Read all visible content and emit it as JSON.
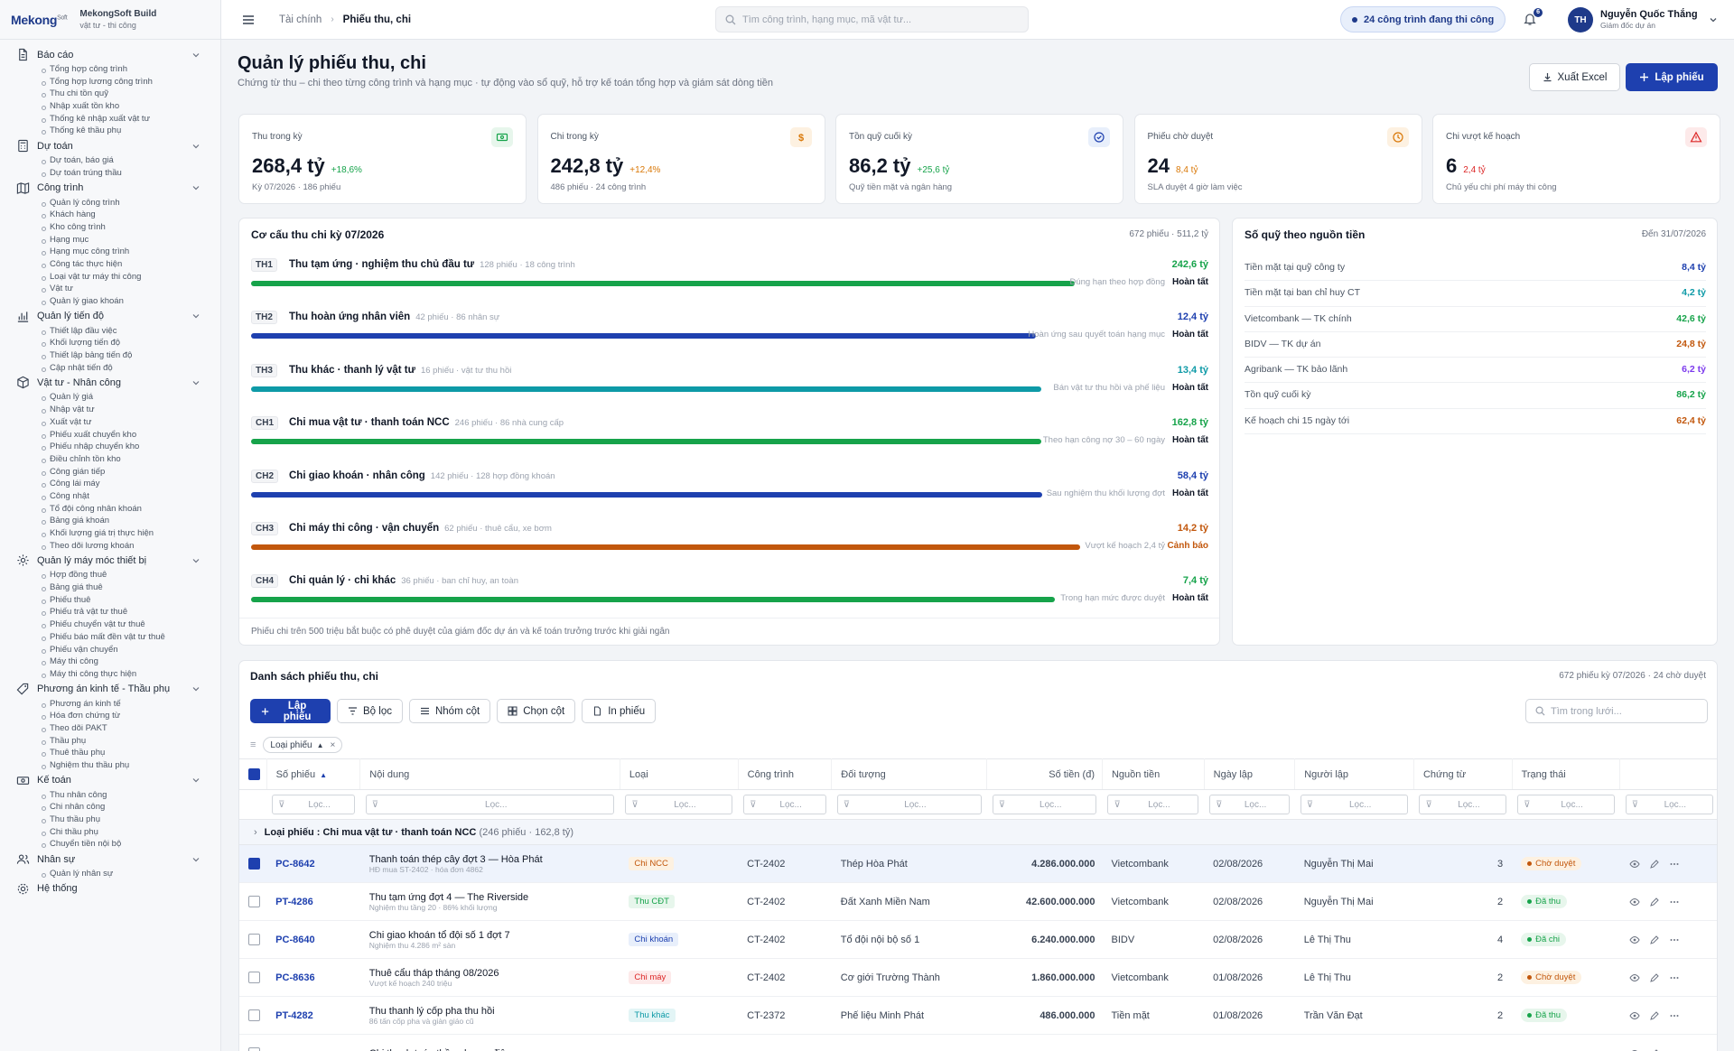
{
  "brand": {
    "logo_main": "Mekong",
    "logo_sup": "Soft",
    "name": "MekongSoft Build",
    "tagline": "vật tư - thi công"
  },
  "sidebar": [
    {
      "label": "Báo cáo",
      "icon": "document-icon",
      "items": [
        "Tổng hợp công trình",
        "Tổng hợp lương công trình",
        "Thu chi tồn quỹ",
        "Nhập xuất tồn kho",
        "Thống kê nhập xuất vật tư",
        "Thống kê thầu phụ"
      ]
    },
    {
      "label": "Dự toán",
      "icon": "calculator-icon",
      "items": [
        "Dự toán, báo giá",
        "Dự toán trúng thầu"
      ]
    },
    {
      "label": "Công trình",
      "icon": "map-icon",
      "items": [
        "Quản lý công trình",
        "Khách hàng",
        "Kho công trình",
        "Hạng mục",
        "Hạng mục công trình",
        "Công tác thực hiện",
        "Loại vật tư máy thi công",
        "Vật tư",
        "Quản lý giao khoán"
      ]
    },
    {
      "label": "Quản lý tiến độ",
      "icon": "bar-chart-icon",
      "items": [
        "Thiết lập đầu việc",
        "Khối lượng tiến độ",
        "Thiết lập bảng tiến độ",
        "Cập nhật tiến độ"
      ]
    },
    {
      "label": "Vật tư - Nhân công",
      "icon": "box-icon",
      "items": [
        "Quản lý giá",
        "Nhập vật tư",
        "Xuất vật tư",
        "Phiếu xuất chuyển kho",
        "Phiếu nhập chuyển kho",
        "Điều chỉnh tồn kho",
        "Công gián tiếp",
        "Công lái máy",
        "Công nhật",
        "Tổ đội công nhân khoán",
        "Bảng giá khoán",
        "Khối lượng giá trị thực hiện",
        "Theo dõi lương khoán"
      ]
    },
    {
      "label": "Quản lý máy móc thiết bị",
      "icon": "gear-icon",
      "items": [
        "Hợp đồng thuê",
        "Bảng giá thuê",
        "Phiếu thuê",
        "Phiếu trả vật tư thuê",
        "Phiếu chuyển vật tư thuê",
        "Phiếu báo mất đền vật tư thuê",
        "Phiếu vận chuyển",
        "Máy thi công",
        "Máy thi công thực hiện"
      ]
    },
    {
      "label": "Phương án kinh tế - Thầu phụ",
      "icon": "tag-icon",
      "items": [
        "Phương án kinh tế",
        "Hóa đơn chứng từ",
        "Theo dõi PAKT",
        "Thầu phụ",
        "Thuê thầu phụ",
        "Nghiệm thu thầu phụ"
      ]
    },
    {
      "label": "Kế toán",
      "icon": "money-icon",
      "items": [
        "Thu nhân công",
        "Chi nhân công",
        "Thu thầu phụ",
        "Chi thầu phụ",
        "Chuyển tiền nội bộ"
      ]
    },
    {
      "label": "Nhân sự",
      "icon": "users-icon",
      "items": [
        "Quản lý nhân sự"
      ]
    },
    {
      "label": "Hệ thống",
      "icon": "settings-icon",
      "items": []
    }
  ],
  "header": {
    "breadcrumb_parent": "Tài chính",
    "breadcrumb_current": "Phiếu thu, chi",
    "search_placeholder": "Tìm công trình, hạng mục, mã vật tư...",
    "status_pill": "24 công trình đang thi công",
    "notif_count": "6",
    "user_initials": "TH",
    "user_name": "Nguyễn Quốc Thắng",
    "user_role": "Giám đốc dự án"
  },
  "page": {
    "title": "Quản lý phiếu thu, chi",
    "subtitle": "Chứng từ thu – chi theo từng công trình và hạng mục · tự động vào sổ quỹ, hỗ trợ kế toán tổng hợp và giám sát dòng tiền",
    "export_label": "Xuất Excel",
    "create_label": "Lập phiếu"
  },
  "kpis": [
    {
      "title": "Thu trong kỳ",
      "value": "268,4 tỷ",
      "delta": "+18,6%",
      "delta_color": "#16a34a",
      "foot": "Kỳ 07/2026 · 186 phiếu",
      "icon": "cash-icon",
      "icon_color": "#16a34a",
      "icon_bg": "#e7f6ec"
    },
    {
      "title": "Chi trong kỳ",
      "value": "242,8 tỷ",
      "delta": "+12,4%",
      "delta_color": "#d97706",
      "foot": "486 phiếu · 24 công trình",
      "icon": "dollar-icon",
      "icon_color": "#d97706",
      "icon_bg": "#fdf1e1"
    },
    {
      "title": "Tồn quỹ cuối kỳ",
      "value": "86,2 tỷ",
      "delta": "+25,6 tỷ",
      "delta_color": "#16a34a",
      "foot": "Quỹ tiền mặt và ngân hàng",
      "icon": "check-circle-icon",
      "icon_color": "#1e40af",
      "icon_bg": "#e8effb"
    },
    {
      "title": "Phiếu chờ duyệt",
      "value": "24",
      "delta": "8,4 tỷ",
      "delta_color": "#d97706",
      "foot": "SLA duyệt 4 giờ làm việc",
      "icon": "clock-icon",
      "icon_color": "#d97706",
      "icon_bg": "#fdf1e1"
    },
    {
      "title": "Chi vượt kế hoạch",
      "value": "6",
      "delta": "2,4 tỷ",
      "delta_color": "#dc2626",
      "foot": "Chủ yếu chi phí máy thi công",
      "icon": "warning-icon",
      "icon_color": "#dc2626",
      "icon_bg": "#fdeaea"
    }
  ],
  "structure": {
    "title": "Cơ cấu thu chi kỳ 07/2026",
    "meta": "672 phiếu · 511,2 tỷ",
    "footnote": "Phiếu chi trên 500 triệu bắt buộc có phê duyệt của giám đốc dự án và kế toán trưởng trước khi giải ngân",
    "rows": [
      {
        "code": "TH1",
        "name": "Thu tạm ứng · nghiệm thu chủ đầu tư",
        "meta": "128 phiếu · 18 công trình",
        "amount": "242,6 tỷ",
        "fill": 0.86,
        "color": "#16a34a",
        "note": "Đúng hạn theo hợp đồng",
        "status": "Hoàn tất"
      },
      {
        "code": "TH2",
        "name": "Thu hoàn ứng nhân viên",
        "meta": "42 phiếu · 86 nhân sự",
        "amount": "12,4 tỷ",
        "fill": 0.82,
        "color": "#1e40af",
        "note": "Hoàn ứng sau quyết toán hạng mục",
        "status": "Hoàn tất"
      },
      {
        "code": "TH3",
        "name": "Thu khác · thanh lý vật tư",
        "meta": "16 phiếu · vật tư thu hồi",
        "amount": "13,4 tỷ",
        "fill": 0.825,
        "color": "#0e9aa7",
        "note": "Bán vật tư thu hồi và phế liệu",
        "status": "Hoàn tất"
      },
      {
        "code": "CH1",
        "name": "Chi mua vật tư · thanh toán NCC",
        "meta": "246 phiếu · 86 nhà cung cấp",
        "amount": "162,8 tỷ",
        "fill": 0.825,
        "color": "#16a34a",
        "note": "Theo hạn công nợ 30 – 60 ngày",
        "status": "Hoàn tất"
      },
      {
        "code": "CH2",
        "name": "Chi giao khoán · nhân công",
        "meta": "142 phiếu · 128 hợp đồng khoán",
        "amount": "58,4 tỷ",
        "fill": 0.826,
        "color": "#1e40af",
        "note": "Sau nghiệm thu khối lượng đợt",
        "status": "Hoàn tất"
      },
      {
        "code": "CH3",
        "name": "Chi máy thi công · vận chuyển",
        "meta": "62 phiếu · thuê cẩu, xe bơm",
        "amount": "14,2 tỷ",
        "fill": 0.866,
        "color": "#c2570c",
        "note": "Vượt kế hoạch 2,4 tỷ",
        "status": "Cảnh báo"
      },
      {
        "code": "CH4",
        "name": "Chi quản lý · chi khác",
        "meta": "36 phiếu · ban chỉ huy, an toàn",
        "amount": "7,4 tỷ",
        "fill": 0.84,
        "color": "#16a34a",
        "note": "Trong hạn mức được duyệt",
        "status": "Hoàn tất"
      }
    ]
  },
  "fund": {
    "title": "Số quỹ theo nguồn tiền",
    "meta": "Đến 31/07/2026",
    "rows": [
      {
        "label": "Tiền mặt tại quỹ công ty",
        "value": "8,4 tỷ",
        "color": "#1e40af"
      },
      {
        "label": "Tiền mặt tại ban chỉ huy CT",
        "value": "4,2 tỷ",
        "color": "#0e9aa7"
      },
      {
        "label": "Vietcombank — TK chính",
        "value": "42,6 tỷ",
        "color": "#16a34a"
      },
      {
        "label": "BIDV — TK dự án",
        "value": "24,8 tỷ",
        "color": "#c2570c"
      },
      {
        "label": "Agribank — TK bảo lãnh",
        "value": "6,2 tỷ",
        "color": "#7c3aed"
      },
      {
        "label": "Tồn quỹ cuối kỳ",
        "value": "86,2 tỷ",
        "color": "#16a34a"
      },
      {
        "label": "Kế hoạch chi 15 ngày tới",
        "value": "62,4 tỷ",
        "color": "#c2570c"
      }
    ]
  },
  "grid": {
    "title": "Danh sách phiếu thu, chi",
    "meta": "672 phiếu kỳ 07/2026 · 24 chờ duyệt",
    "toolbar": {
      "create": "Lập phiếu",
      "filter": "Bộ lọc",
      "group": "Nhóm cột",
      "columns": "Chọn cột",
      "print": "In phiếu"
    },
    "search_placeholder": "Tìm trong lưới...",
    "group_chip": "Loại phiếu",
    "columns": [
      "Số phiếu",
      "Nội dung",
      "Loại",
      "Công trình",
      "Đối tượng",
      "Số tiền (đ)",
      "Nguồn tiền",
      "Ngày lập",
      "Người lập",
      "Chứng từ",
      "Trạng thái"
    ],
    "filter_placeholder": "Lọc...",
    "group_row": {
      "label": "Loại phiếu",
      "value": "Chi mua vật tư · thanh toán NCC",
      "count": "(246 phiếu · 162,8 tỷ)"
    },
    "rows": [
      {
        "no": "PC-8642",
        "title": "Thanh toán thép cây đợt 3 — Hòa Phát",
        "sub": "HĐ mua ST-2402 · hóa đơn 4862",
        "type": "Chi NCC",
        "type_color": "#c2570c",
        "type_bg": "#fdf1e1",
        "project": "CT-2402",
        "party": "Thép Hòa Phát",
        "amount": "4.286.000.000",
        "source": "Vietcombank",
        "date": "02/08/2026",
        "creator": "Nguyễn Thị Mai",
        "docs": "3",
        "status": "Chờ duyệt",
        "status_color": "#c2570c",
        "status_bg": "#fdf1e1",
        "selected": true
      },
      {
        "no": "PT-4286",
        "title": "Thu tạm ứng đợt 4 — The Riverside",
        "sub": "Nghiệm thu tầng 20 · 86% khối lượng",
        "type": "Thu CĐT",
        "type_color": "#16a34a",
        "type_bg": "#e7f6ec",
        "project": "CT-2402",
        "party": "Đất Xanh Miền Nam",
        "amount": "42.600.000.000",
        "source": "Vietcombank",
        "date": "02/08/2026",
        "creator": "Nguyễn Thị Mai",
        "docs": "2",
        "status": "Đã thu",
        "status_color": "#16a34a",
        "status_bg": "#e7f6ec",
        "selected": false
      },
      {
        "no": "PC-8640",
        "title": "Chi giao khoán tổ đội số 1 đợt 7",
        "sub": "Nghiệm thu 4.286 m² sàn",
        "type": "Chi khoán",
        "type_color": "#1e40af",
        "type_bg": "#e8effb",
        "project": "CT-2402",
        "party": "Tổ đội nội bộ số 1",
        "amount": "6.240.000.000",
        "source": "BIDV",
        "date": "02/08/2026",
        "creator": "Lê Thị Thu",
        "docs": "4",
        "status": "Đã chi",
        "status_color": "#16a34a",
        "status_bg": "#e7f6ec",
        "selected": false
      },
      {
        "no": "PC-8636",
        "title": "Thuê cẩu tháp tháng 08/2026",
        "sub": "Vượt kế hoạch 240 triệu",
        "type": "Chi máy",
        "type_color": "#dc2626",
        "type_bg": "#fdeaea",
        "project": "CT-2402",
        "party": "Cơ giới Trường Thành",
        "amount": "1.860.000.000",
        "source": "Vietcombank",
        "date": "01/08/2026",
        "creator": "Lê Thị Thu",
        "docs": "2",
        "status": "Chờ duyệt",
        "status_color": "#c2570c",
        "status_bg": "#fdf1e1",
        "selected": false
      },
      {
        "no": "PT-4282",
        "title": "Thu thanh lý cốp pha thu hồi",
        "sub": "86 tấn cốp pha và giàn giáo cũ",
        "type": "Thu khác",
        "type_color": "#0e9aa7",
        "type_bg": "#e3f5f6",
        "project": "CT-2372",
        "party": "Phế liệu Minh Phát",
        "amount": "486.000.000",
        "source": "Tiền mặt",
        "date": "01/08/2026",
        "creator": "Trần Văn Đạt",
        "docs": "2",
        "status": "Đã thu",
        "status_color": "#16a34a",
        "status_bg": "#e7f6ec",
        "selected": false
      },
      {
        "no": "",
        "title": "Chi thanh toán thầu phụ cơ điện",
        "sub": "",
        "type": "",
        "type_color": "#1e40af",
        "type_bg": "#e8effb",
        "project": "",
        "party": "",
        "amount": "",
        "source": "",
        "date": "",
        "creator": "",
        "docs": "",
        "status": "",
        "status_color": "#16a34a",
        "status_bg": "#e7f6ec",
        "selected": false
      }
    ]
  }
}
